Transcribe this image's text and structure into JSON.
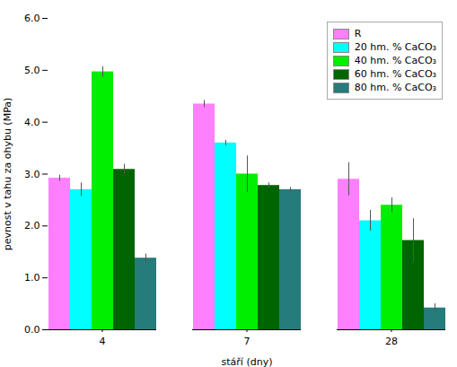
{
  "chart_data": {
    "type": "bar",
    "xlabel": "stáří (dny)",
    "ylabel": "pevnost v tahu za ohybu (MPa)",
    "categories": [
      "4",
      "7",
      "28"
    ],
    "series": [
      {
        "name": "R",
        "color": "#FF80FF",
        "values": [
          2.92,
          4.35,
          2.9
        ],
        "errors": [
          0.06,
          0.07,
          0.32
        ]
      },
      {
        "name": "20 hm. % CaCO₃",
        "color": "#00FFFF",
        "values": [
          2.7,
          3.6,
          2.1
        ],
        "errors": [
          0.13,
          0.05,
          0.2
        ]
      },
      {
        "name": "40 hm. % CaCO₃",
        "color": "#00EE00",
        "values": [
          4.97,
          3.0,
          2.4
        ],
        "errors": [
          0.1,
          0.35,
          0.14
        ]
      },
      {
        "name": "60 hm. % CaCO₃",
        "color": "#006400",
        "values": [
          3.09,
          2.78,
          1.72
        ],
        "errors": [
          0.1,
          0.05,
          0.42
        ]
      },
      {
        "name": "80 hm. % CaCO₃",
        "color": "#267B7B",
        "values": [
          1.38,
          2.7,
          0.42
        ],
        "errors": [
          0.08,
          0.04,
          0.08
        ]
      }
    ],
    "ylim": [
      0,
      6
    ],
    "yticks": [
      0,
      1,
      2,
      3,
      4,
      5,
      6
    ],
    "grid": false,
    "legend": "upper right"
  }
}
